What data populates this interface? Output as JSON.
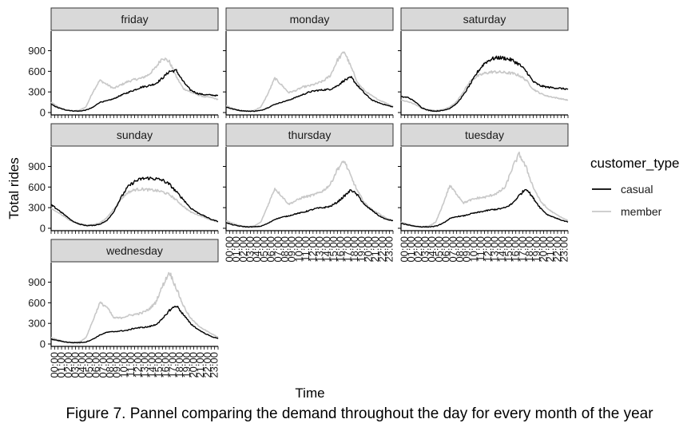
{
  "caption": "Figure 7. Pannel comparing the demand throughout the day for every month of the year",
  "chart_data": {
    "type": "line",
    "facet_by": "weekday",
    "xlabel": "Time",
    "ylabel": "Total rides",
    "ylim": [
      0,
      1150
    ],
    "y_ticks": [
      0,
      300,
      600,
      900
    ],
    "x_range_hours": [
      0,
      24
    ],
    "x_ticks": [
      "00:00",
      "01:00",
      "02:00",
      "03:00",
      "04:00",
      "05:00",
      "06:00",
      "07:00",
      "08:00",
      "09:00",
      "10:00",
      "11:00",
      "12:00",
      "13:00",
      "14:00",
      "15:00",
      "16:00",
      "17:00",
      "18:00",
      "19:00",
      "20:00",
      "21:00",
      "22:00",
      "23:00"
    ],
    "legend": {
      "title": "customer_type",
      "position": "right"
    },
    "series_styles": [
      {
        "name": "casual",
        "color": "#000000"
      },
      {
        "name": "member",
        "color": "#c8c8c8"
      }
    ],
    "hours": [
      0,
      1,
      2,
      3,
      4,
      5,
      6,
      7,
      8,
      9,
      10,
      11,
      12,
      13,
      14,
      15,
      16,
      17,
      18,
      19,
      20,
      21,
      22,
      23,
      24
    ],
    "facets": [
      {
        "label": "friday",
        "casual": [
          120,
          70,
          40,
          25,
          20,
          35,
          75,
          150,
          170,
          200,
          250,
          290,
          330,
          370,
          390,
          420,
          500,
          600,
          610,
          450,
          330,
          280,
          260,
          255,
          245
        ],
        "member": [
          150,
          80,
          40,
          25,
          30,
          80,
          300,
          470,
          410,
          350,
          400,
          450,
          480,
          500,
          550,
          650,
          800,
          740,
          520,
          350,
          300,
          260,
          230,
          220,
          190
        ]
      },
      {
        "label": "monday",
        "casual": [
          80,
          50,
          30,
          20,
          20,
          30,
          70,
          120,
          150,
          180,
          220,
          260,
          300,
          320,
          330,
          340,
          390,
          470,
          510,
          380,
          270,
          180,
          140,
          110,
          80
        ],
        "member": [
          100,
          60,
          30,
          20,
          30,
          80,
          270,
          500,
          400,
          290,
          320,
          370,
          390,
          420,
          460,
          540,
          760,
          890,
          650,
          420,
          310,
          240,
          180,
          140,
          90
        ]
      },
      {
        "label": "saturday",
        "casual": [
          230,
          220,
          160,
          70,
          30,
          20,
          30,
          60,
          130,
          260,
          420,
          590,
          720,
          780,
          800,
          790,
          760,
          700,
          600,
          450,
          390,
          370,
          360,
          350,
          340
        ],
        "member": [
          180,
          160,
          120,
          60,
          40,
          30,
          40,
          80,
          160,
          310,
          460,
          530,
          570,
          590,
          590,
          580,
          570,
          540,
          470,
          340,
          280,
          240,
          220,
          200,
          180
        ]
      },
      {
        "label": "sunday",
        "casual": [
          340,
          270,
          190,
          110,
          60,
          40,
          40,
          60,
          110,
          240,
          440,
          600,
          680,
          720,
          730,
          720,
          700,
          640,
          530,
          420,
          300,
          230,
          180,
          130,
          100
        ],
        "member": [
          280,
          230,
          160,
          100,
          70,
          50,
          50,
          80,
          150,
          280,
          420,
          520,
          560,
          570,
          560,
          550,
          530,
          490,
          410,
          320,
          240,
          200,
          160,
          120,
          90
        ]
      },
      {
        "label": "thursday",
        "casual": [
          80,
          50,
          30,
          20,
          20,
          30,
          70,
          130,
          160,
          180,
          210,
          230,
          260,
          290,
          300,
          320,
          380,
          470,
          560,
          470,
          330,
          260,
          180,
          130,
          110
        ],
        "member": [
          110,
          70,
          40,
          20,
          30,
          90,
          330,
          580,
          470,
          350,
          400,
          450,
          470,
          500,
          550,
          640,
          860,
          980,
          740,
          520,
          360,
          270,
          210,
          150,
          110
        ]
      },
      {
        "label": "tuesday",
        "casual": [
          70,
          50,
          30,
          20,
          20,
          30,
          70,
          140,
          170,
          180,
          210,
          230,
          250,
          270,
          280,
          300,
          360,
          480,
          580,
          440,
          300,
          200,
          160,
          120,
          90
        ],
        "member": [
          90,
          60,
          30,
          20,
          30,
          90,
          340,
          620,
          500,
          370,
          410,
          440,
          450,
          480,
          520,
          600,
          880,
          1080,
          880,
          600,
          400,
          290,
          220,
          160,
          110
        ]
      },
      {
        "label": "wednesday",
        "casual": [
          70,
          50,
          30,
          20,
          20,
          30,
          70,
          130,
          170,
          180,
          190,
          200,
          230,
          240,
          250,
          280,
          360,
          490,
          560,
          430,
          300,
          220,
          160,
          110,
          80
        ],
        "member": [
          90,
          60,
          30,
          20,
          30,
          90,
          340,
          600,
          540,
          380,
          380,
          410,
          430,
          450,
          500,
          600,
          840,
          1050,
          810,
          560,
          380,
          280,
          210,
          150,
          100
        ]
      }
    ]
  }
}
